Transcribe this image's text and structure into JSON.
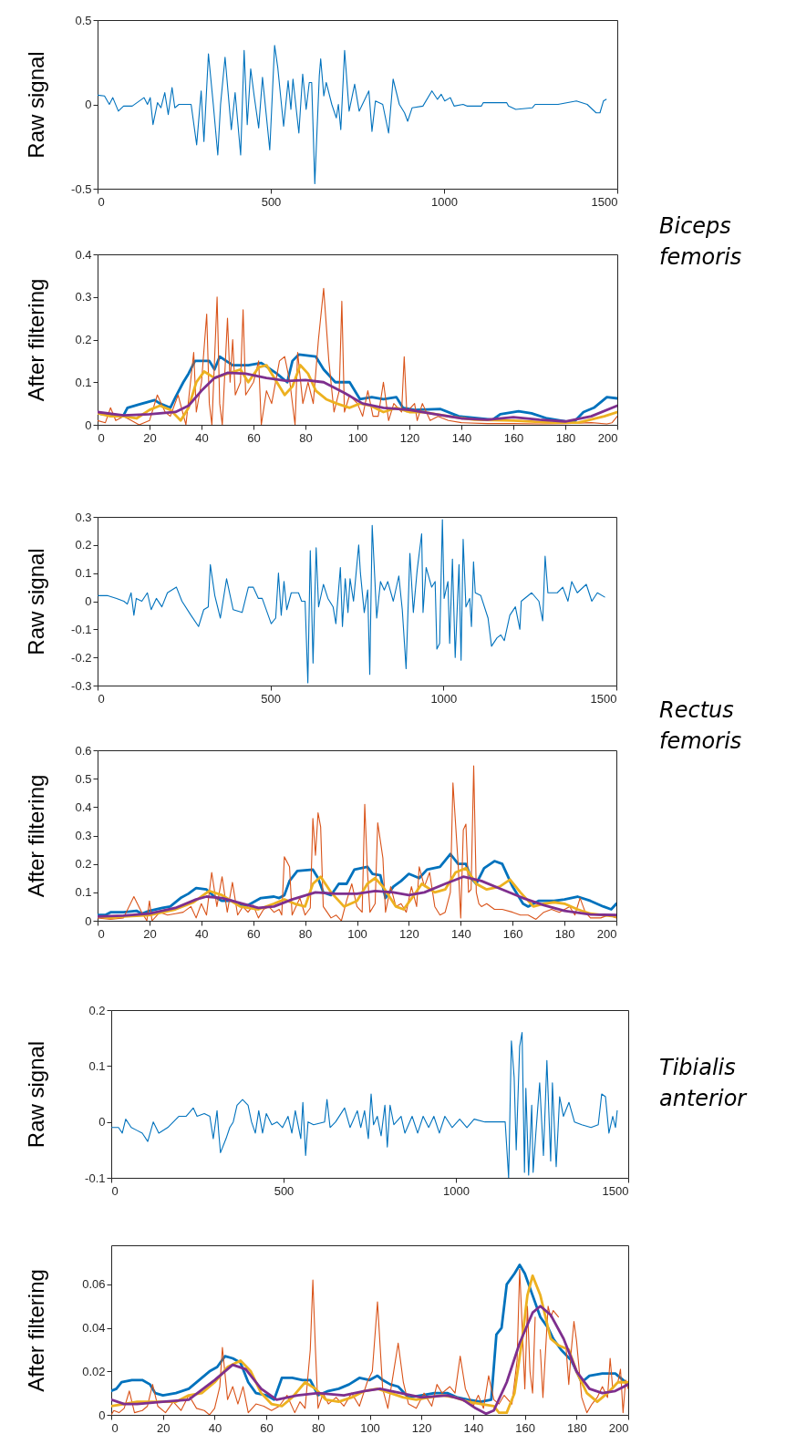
{
  "chart_data": [
    {
      "type": "line",
      "ylabel": "Raw signal",
      "xlim": [
        0,
        1500
      ],
      "xticks": [
        0,
        500,
        1000,
        1500
      ],
      "ylim": [
        -0.5,
        0.5
      ],
      "yticks": [
        -0.5,
        0,
        0.5
      ],
      "annotations": [
        "Biceps femoris"
      ],
      "series": [
        {
          "color": "#0072bd",
          "x": [
            0,
            20,
            34,
            44,
            60,
            75,
            100,
            134,
            144,
            152,
            160,
            173,
            183,
            194,
            204,
            215,
            223,
            235,
            270,
            286,
            299,
            307,
            320,
            334,
            347,
            355,
            368,
            386,
            397,
            413,
            423,
            432,
            442,
            452,
            465,
            476,
            497,
            511,
            520,
            537,
            550,
            558,
            564,
            581,
            592,
            602,
            611,
            618,
            627,
            640,
            644,
            653,
            660,
            676,
            689,
            695,
            702,
            713,
            726,
            742,
            755,
            783,
            792,
            802,
            823,
            840,
            853,
            871,
            886,
            895,
            908,
            939,
            965,
            981,
            992,
            1002,
            1018,
            1029,
            1055,
            1066,
            1108,
            1113,
            1181,
            1186,
            1207,
            1255,
            1263,
            1329,
            1382,
            1413,
            1439,
            1450,
            1460,
            1468
          ],
          "values": [
            0.055,
            0.05,
            0,
            0.04,
            -0.04,
            -0.01,
            -0.01,
            0.04,
            0,
            0.04,
            -0.12,
            0.01,
            -0.02,
            0.07,
            -0.06,
            0.1,
            -0.02,
            0,
            0,
            -0.24,
            0.08,
            -0.22,
            0.3,
            0,
            -0.3,
            0,
            0.28,
            -0.15,
            0.07,
            -0.3,
            0.32,
            -0.12,
            0.21,
            0.05,
            -0.14,
            0.16,
            -0.27,
            0.35,
            0.22,
            -0.13,
            0.14,
            -0.03,
            0.15,
            -0.17,
            0.18,
            -0.03,
            0.13,
            0.13,
            -0.47,
            0.17,
            0.27,
            0.05,
            0.13,
            0,
            -0.08,
            0,
            -0.15,
            0.32,
            -0.04,
            0.12,
            -0.04,
            0.08,
            -0.16,
            0.02,
            0,
            -0.17,
            0.15,
            0,
            -0.05,
            -0.1,
            -0.02,
            -0.01,
            0.08,
            0.03,
            0.06,
            0.02,
            0.04,
            -0.01,
            0,
            -0.01,
            -0.01,
            0.01,
            0.01,
            -0.01,
            -0.03,
            -0.02,
            0,
            0,
            0.02,
            0,
            -0.05,
            -0.05,
            0.02,
            0.03
          ]
        }
      ]
    },
    {
      "type": "line",
      "ylabel": "After filtering",
      "xlim": [
        0,
        200
      ],
      "xticks": [
        0,
        20,
        40,
        60,
        80,
        100,
        120,
        140,
        160,
        180,
        200
      ],
      "ylim": [
        0,
        0.4
      ],
      "yticks": [
        0,
        0.1,
        0.2,
        0.3,
        0.4
      ],
      "series": [
        {
          "color": "#0072bd",
          "x": [
            0,
            5,
            10,
            11.5,
            16,
            22,
            24,
            28,
            30,
            33,
            35,
            37.5,
            43,
            45,
            47,
            52,
            58,
            63,
            69,
            73,
            75,
            77.5,
            84,
            87,
            91.5,
            97,
            101,
            105.5,
            110,
            115,
            117.5,
            122,
            132,
            139,
            152,
            155,
            162,
            167,
            173,
            183,
            187,
            191,
            196,
            200
          ],
          "values": [
            0.027,
            0.022,
            0.022,
            0.04,
            0.048,
            0.058,
            0.05,
            0.04,
            0.065,
            0.1,
            0.12,
            0.15,
            0.15,
            0.13,
            0.16,
            0.14,
            0.14,
            0.145,
            0.12,
            0.1,
            0.15,
            0.165,
            0.16,
            0.13,
            0.1,
            0.1,
            0.06,
            0.065,
            0.06,
            0.065,
            0.04,
            0.035,
            0.037,
            0.02,
            0.012,
            0.025,
            0.032,
            0.027,
            0.015,
            0.005,
            0.03,
            0.04,
            0.065,
            0.062
          ]
        },
        {
          "color": "#d95319",
          "x": [
            0,
            3,
            5,
            7,
            10,
            13,
            16,
            20,
            23,
            26,
            28,
            31,
            34,
            37,
            38,
            40,
            42,
            43,
            44,
            46,
            47,
            48,
            50,
            51,
            52,
            53,
            55,
            56,
            57,
            60,
            62,
            63,
            65,
            67,
            70,
            72,
            74,
            76,
            77,
            79,
            81,
            83,
            85,
            87,
            89,
            91,
            93,
            94,
            95,
            97,
            100,
            102,
            104,
            106,
            108,
            110,
            112,
            114,
            117,
            118,
            119,
            122,
            123,
            125,
            128,
            131,
            135,
            140,
            150,
            160,
            170,
            180,
            190,
            196,
            198,
            200
          ],
          "values": [
            0.01,
            0.005,
            0.04,
            0.01,
            0.02,
            0.01,
            0,
            0.01,
            0.07,
            0.03,
            0.02,
            0.07,
            0,
            0.17,
            0.03,
            0.1,
            0.26,
            0.05,
            0,
            0.3,
            0.05,
            0,
            0.25,
            0.1,
            0.2,
            0.07,
            0.1,
            0.27,
            0.07,
            0.1,
            0.15,
            0,
            0.08,
            0.05,
            0.15,
            0.16,
            0.1,
            0,
            0.17,
            0.05,
            0.1,
            0.05,
            0.2,
            0.32,
            0.15,
            0.03,
            0.08,
            0.29,
            0.03,
            0.07,
            0.05,
            0.02,
            0.08,
            0.02,
            0.02,
            0.1,
            0.01,
            0.05,
            0.03,
            0.16,
            0.03,
            0.05,
            0.01,
            0.05,
            0.01,
            0.02,
            0.01,
            0.005,
            0.003,
            0.003,
            0.002,
            0.003,
            0.005,
            0.002,
            0.005,
            0.02
          ]
        },
        {
          "color": "#edb120",
          "x": [
            0,
            5,
            10,
            15,
            20,
            24,
            28,
            32,
            35,
            38,
            41,
            45,
            50,
            55,
            58,
            62,
            65,
            69,
            72,
            75,
            78,
            81,
            84,
            88,
            92,
            97,
            101,
            105,
            110,
            115,
            120,
            125,
            135,
            145,
            160,
            175,
            185,
            195,
            200
          ],
          "values": [
            0.027,
            0.02,
            0.02,
            0.015,
            0.035,
            0.045,
            0.035,
            0.01,
            0.04,
            0.1,
            0.125,
            0.11,
            0.12,
            0.13,
            0.1,
            0.135,
            0.14,
            0.1,
            0.07,
            0.09,
            0.14,
            0.12,
            0.08,
            0.06,
            0.05,
            0.04,
            0.05,
            0.045,
            0.03,
            0.04,
            0.03,
            0.03,
            0.02,
            0.012,
            0.01,
            0.005,
            0.005,
            0.02,
            0.03
          ]
        },
        {
          "color": "#7e2f8e",
          "x": [
            0,
            10,
            20,
            30,
            35,
            40,
            45,
            50,
            57,
            65,
            73,
            80,
            87,
            95,
            102,
            110,
            120,
            130,
            140,
            150,
            160,
            170,
            180,
            190,
            200
          ],
          "values": [
            0.03,
            0.022,
            0.025,
            0.03,
            0.045,
            0.08,
            0.11,
            0.122,
            0.12,
            0.11,
            0.103,
            0.105,
            0.1,
            0.075,
            0.05,
            0.04,
            0.035,
            0.025,
            0.015,
            0.012,
            0.018,
            0.012,
            0.008,
            0.02,
            0.045
          ]
        }
      ]
    },
    {
      "type": "line",
      "ylabel": "Raw signal",
      "xlim": [
        0,
        1500
      ],
      "xticks": [
        0,
        500,
        1000,
        1500
      ],
      "ylim": [
        -0.3,
        0.3
      ],
      "yticks": [
        -0.3,
        -0.2,
        -0.1,
        0,
        0.1,
        0.2,
        0.3
      ],
      "annotations": [
        "Rectus femoris"
      ],
      "series": [
        {
          "color": "#0072bd",
          "x": [
            2,
            28,
            55,
            76,
            86,
            97,
            105,
            112,
            128,
            144,
            155,
            170,
            186,
            202,
            228,
            244,
            270,
            292,
            307,
            320,
            326,
            339,
            355,
            373,
            392,
            418,
            436,
            450,
            465,
            476,
            502,
            515,
            523,
            531,
            539,
            547,
            560,
            581,
            590,
            600,
            608,
            615,
            623,
            632,
            639,
            653,
            666,
            681,
            689,
            702,
            708,
            716,
            724,
            730,
            740,
            755,
            760,
            771,
            781,
            787,
            794,
            802,
            807,
            818,
            829,
            839,
            855,
            871,
            881,
            892,
            903,
            913,
            924,
            937,
            941,
            950,
            966,
            976,
            981,
            989,
            997,
            1002,
            1013,
            1018,
            1026,
            1034,
            1045,
            1051,
            1057,
            1065,
            1076,
            1081,
            1087,
            1092,
            1108,
            1129,
            1139,
            1155,
            1166,
            1176,
            1192,
            1208,
            1221,
            1225,
            1255,
            1276,
            1287,
            1294,
            1302,
            1329,
            1345,
            1360,
            1371,
            1387,
            1413,
            1429,
            1445,
            1466
          ],
          "values": [
            0.02,
            0.02,
            0.01,
            0,
            -0.01,
            0.03,
            -0.05,
            0.01,
            0,
            0.03,
            -0.03,
            0.01,
            -0.02,
            0.03,
            0.05,
            0,
            -0.05,
            -0.09,
            -0.03,
            -0.02,
            0.13,
            0.02,
            -0.06,
            0.08,
            -0.03,
            -0.04,
            0.05,
            0.05,
            0.01,
            0.01,
            -0.08,
            -0.06,
            0.1,
            -0.05,
            0.07,
            -0.03,
            0.03,
            0.03,
            0,
            0,
            -0.29,
            0.18,
            -0.22,
            0.19,
            -0.02,
            0.06,
            0.01,
            -0.02,
            -0.08,
            0.12,
            -0.09,
            0.08,
            -0.04,
            0.08,
            0,
            0.2,
            0.1,
            -0.04,
            0.04,
            -0.26,
            0.27,
            0.07,
            -0.06,
            0.07,
            0.04,
            0.07,
            0,
            0.09,
            -0.03,
            -0.24,
            0.17,
            -0.04,
            0.11,
            0.24,
            -0.04,
            0.12,
            0.05,
            0.07,
            -0.17,
            -0.15,
            0.29,
            0.01,
            0.07,
            -0.15,
            0.15,
            -0.2,
            0.13,
            -0.21,
            0.22,
            -0.02,
            0.01,
            -0.09,
            0.14,
            0.03,
            0.02,
            -0.06,
            -0.16,
            -0.13,
            -0.12,
            -0.14,
            -0.05,
            -0.02,
            -0.1,
            0,
            0.03,
            0,
            -0.07,
            0.16,
            0.03,
            0.03,
            0.05,
            0,
            0.07,
            0.03,
            0.06,
            0,
            0.03,
            0.015
          ]
        }
      ]
    },
    {
      "type": "line",
      "ylabel": "After filtering",
      "xlim": [
        0,
        200
      ],
      "xticks": [
        0,
        20,
        40,
        60,
        80,
        100,
        120,
        140,
        160,
        180,
        200
      ],
      "ylim": [
        0,
        0.6
      ],
      "yticks": [
        0,
        0.1,
        0.2,
        0.3,
        0.4,
        0.5,
        0.6
      ],
      "series": [
        {
          "color": "#0072bd",
          "x": [
            0,
            3,
            5,
            10,
            15,
            17,
            20,
            25,
            28,
            32,
            35,
            38,
            42,
            45,
            48,
            52,
            57,
            60,
            63,
            68,
            70,
            72,
            74,
            77,
            83,
            85,
            87,
            90,
            93,
            96,
            99,
            104,
            106,
            109,
            111,
            114,
            117,
            120,
            124,
            127,
            132,
            136,
            139,
            142,
            144,
            146,
            149,
            153,
            156,
            160,
            164,
            166,
            170,
            176,
            180,
            185,
            190,
            195,
            198,
            200
          ],
          "values": [
            0.02,
            0.02,
            0.03,
            0.03,
            0.035,
            0.025,
            0.035,
            0.045,
            0.05,
            0.08,
            0.095,
            0.115,
            0.11,
            0.085,
            0.07,
            0.07,
            0.05,
            0.065,
            0.08,
            0.085,
            0.08,
            0.09,
            0.14,
            0.175,
            0.18,
            0.15,
            0.1,
            0.09,
            0.13,
            0.13,
            0.18,
            0.19,
            0.165,
            0.16,
            0.08,
            0.12,
            0.14,
            0.165,
            0.15,
            0.18,
            0.19,
            0.235,
            0.2,
            0.2,
            0.15,
            0.13,
            0.185,
            0.21,
            0.2,
            0.12,
            0.06,
            0.05,
            0.07,
            0.07,
            0.075,
            0.085,
            0.07,
            0.05,
            0.04,
            0.06
          ]
        },
        {
          "color": "#d95319",
          "x": [
            0,
            5,
            10,
            14,
            17,
            19,
            20,
            21,
            24,
            27,
            30,
            33,
            36,
            38,
            40,
            42,
            44,
            46,
            48,
            50,
            52,
            54,
            56,
            58,
            60,
            62,
            64,
            66,
            68,
            70,
            71,
            72,
            74,
            75,
            78,
            80,
            82,
            83,
            84,
            85,
            86,
            87,
            90,
            92,
            94,
            96,
            98,
            100,
            102,
            103,
            104,
            105,
            107,
            108,
            110,
            111,
            113,
            115,
            117,
            119,
            121,
            123,
            124,
            126,
            128,
            130,
            132,
            134,
            136,
            137,
            139,
            140,
            141,
            142,
            143,
            144,
            145,
            146,
            147,
            148,
            150,
            153,
            156,
            160,
            163,
            166,
            169,
            172,
            175,
            178,
            182,
            184,
            186,
            188,
            190,
            194,
            197,
            200
          ],
          "values": [
            0.01,
            0.005,
            0.01,
            0.085,
            0.03,
            0,
            0.07,
            0,
            0.03,
            0.02,
            0.025,
            0.03,
            0.05,
            0.01,
            0.06,
            0.02,
            0.17,
            0.05,
            0.155,
            0.03,
            0.135,
            0.02,
            0.05,
            0.03,
            0.055,
            0.01,
            0.04,
            0.05,
            0.03,
            0.04,
            0.02,
            0.225,
            0.19,
            0.02,
            0.08,
            0.02,
            0.045,
            0.36,
            0.23,
            0.38,
            0.33,
            0.05,
            0.01,
            0.02,
            0,
            0.07,
            0.13,
            0.05,
            0.03,
            0.41,
            0.18,
            0.03,
            0.06,
            0.345,
            0.22,
            0.03,
            0.12,
            0.05,
            0.06,
            0.03,
            0.12,
            0.05,
            0.19,
            0.12,
            0.17,
            0.05,
            0.02,
            0.03,
            0.1,
            0.485,
            0.2,
            0.01,
            0.32,
            0.34,
            0.1,
            0.11,
            0.545,
            0.1,
            0.06,
            0.05,
            0.06,
            0.04,
            0.04,
            0.03,
            0.02,
            0.02,
            0.005,
            0.03,
            0.04,
            0.03,
            0.05,
            0.02,
            0.08,
            0.03,
            0.01,
            0.01,
            0.02,
            0.01
          ]
        },
        {
          "color": "#edb120",
          "x": [
            0,
            5,
            10,
            20,
            30,
            37,
            43,
            48,
            55,
            62,
            68,
            72,
            76,
            80,
            83,
            86,
            90,
            95,
            100,
            104,
            107,
            110,
            115,
            118,
            122,
            125,
            130,
            134,
            138,
            142,
            146,
            150,
            155,
            159,
            163,
            168,
            172,
            176,
            180,
            185,
            190,
            195,
            200
          ],
          "values": [
            0.015,
            0.01,
            0.015,
            0.02,
            0.04,
            0.065,
            0.105,
            0.09,
            0.05,
            0.04,
            0.06,
            0.075,
            0.06,
            0.05,
            0.13,
            0.155,
            0.1,
            0.05,
            0.07,
            0.13,
            0.15,
            0.12,
            0.05,
            0.04,
            0.09,
            0.13,
            0.1,
            0.11,
            0.17,
            0.185,
            0.13,
            0.11,
            0.12,
            0.145,
            0.1,
            0.05,
            0.06,
            0.065,
            0.06,
            0.04,
            0.025,
            0.02,
            0.015
          ]
        },
        {
          "color": "#7e2f8e",
          "x": [
            0,
            10,
            20,
            30,
            38,
            42,
            48,
            56,
            62,
            68,
            75,
            84,
            92,
            100,
            107,
            114,
            120,
            126,
            134,
            141,
            148,
            156,
            164,
            172,
            180,
            190,
            200
          ],
          "values": [
            0.015,
            0.018,
            0.025,
            0.045,
            0.075,
            0.085,
            0.08,
            0.06,
            0.045,
            0.05,
            0.075,
            0.1,
            0.095,
            0.095,
            0.105,
            0.1,
            0.09,
            0.1,
            0.13,
            0.155,
            0.14,
            0.11,
            0.08,
            0.055,
            0.035,
            0.022,
            0.02
          ]
        }
      ]
    },
    {
      "type": "line",
      "ylabel": "Raw signal",
      "xlim": [
        0,
        1500
      ],
      "xticks": [
        0,
        500,
        1000,
        1500
      ],
      "ylim": [
        -0.1,
        0.2
      ],
      "yticks": [
        -0.1,
        0,
        0.1,
        0.2
      ],
      "annotations": [
        "Tibialis anterior"
      ],
      "series": [
        {
          "color": "#0072bd",
          "x": [
            0,
            21,
            32,
            42,
            58,
            74,
            90,
            106,
            122,
            138,
            164,
            196,
            217,
            238,
            249,
            270,
            286,
            296,
            307,
            312,
            317,
            333,
            344,
            354,
            365,
            381,
            397,
            407,
            418,
            428,
            439,
            450,
            466,
            481,
            497,
            513,
            524,
            534,
            550,
            556,
            564,
            571,
            587,
            619,
            626,
            635,
            651,
            677,
            693,
            714,
            724,
            735,
            746,
            754,
            761,
            772,
            783,
            794,
            801,
            809,
            820,
            841,
            852,
            873,
            889,
            905,
            921,
            936,
            952,
            968,
            989,
            1011,
            1032,
            1053,
            1084,
            1116,
            1143,
            1153,
            1161,
            1169,
            1175,
            1185,
            1192,
            1199,
            1203,
            1211,
            1220,
            1224,
            1232,
            1243,
            1254,
            1264,
            1275,
            1280,
            1291,
            1301,
            1312,
            1328,
            1344,
            1365,
            1392,
            1413,
            1423,
            1434,
            1444,
            1455,
            1463,
            1468
          ],
          "values": [
            -0.01,
            -0.01,
            -0.02,
            0.005,
            -0.01,
            -0.015,
            -0.02,
            -0.035,
            0,
            -0.02,
            -0.01,
            0.01,
            0.01,
            0.025,
            0.01,
            0.015,
            0.01,
            -0.03,
            0.02,
            -0.02,
            -0.055,
            -0.03,
            -0.01,
            0,
            0.03,
            0.04,
            0.03,
            0,
            -0.02,
            0.02,
            -0.02,
            0.015,
            -0.005,
            0,
            -0.01,
            0.01,
            -0.02,
            0.02,
            -0.03,
            0.035,
            -0.06,
            0,
            -0.005,
            0,
            0.04,
            -0.01,
            0,
            0.025,
            -0.01,
            0.02,
            -0.01,
            0.02,
            -0.03,
            0.05,
            -0.005,
            0.01,
            -0.025,
            0.03,
            -0.045,
            0.03,
            -0.005,
            0.01,
            -0.02,
            0.01,
            -0.02,
            0.01,
            -0.01,
            0.01,
            -0.02,
            0.01,
            -0.01,
            0.005,
            -0.01,
            0.005,
            0,
            0,
            0,
            -0.1,
            0.145,
            0.08,
            -0.05,
            0.135,
            0.16,
            -0.09,
            0.06,
            -0.095,
            0.03,
            -0.09,
            -0.02,
            0.07,
            -0.06,
            0.11,
            -0.07,
            0.07,
            -0.08,
            0.045,
            0.01,
            0.035,
            0,
            -0.005,
            -0.01,
            -0.005,
            0.05,
            0.045,
            -0.02,
            0.01,
            -0.01,
            0.02
          ]
        }
      ]
    },
    {
      "type": "line",
      "ylabel": "After filtering",
      "xlim": [
        0,
        200
      ],
      "xticks": [
        0,
        20,
        40,
        60,
        80,
        100,
        120,
        140,
        160,
        180,
        200
      ],
      "ylim": [
        0,
        0.078
      ],
      "yticks": [
        0,
        0.02,
        0.04,
        0.06
      ],
      "series": [
        {
          "color": "#0072bd",
          "x": [
            0,
            2,
            4,
            8,
            12,
            15,
            17,
            20,
            25,
            30,
            34,
            38,
            41,
            44,
            47,
            50,
            53,
            56,
            60,
            63,
            66,
            70,
            74,
            77,
            80,
            84,
            88,
            92,
            96,
            100,
            103,
            105,
            108,
            111,
            115,
            120,
            125,
            130,
            134,
            138,
            143,
            147,
            149,
            151,
            153,
            156,
            158,
            160,
            163,
            166,
            169,
            171,
            174,
            178,
            182,
            185,
            190,
            195,
            200
          ],
          "values": [
            0.011,
            0.012,
            0.015,
            0.016,
            0.016,
            0.014,
            0.01,
            0.009,
            0.01,
            0.012,
            0.016,
            0.02,
            0.022,
            0.027,
            0.026,
            0.024,
            0.015,
            0.01,
            0.009,
            0.007,
            0.017,
            0.017,
            0.016,
            0.016,
            0.009,
            0.011,
            0.012,
            0.014,
            0.017,
            0.016,
            0.018,
            0.016,
            0.014,
            0.013,
            0.008,
            0.009,
            0.01,
            0.01,
            0.008,
            0.007,
            0.006,
            0.007,
            0.037,
            0.04,
            0.06,
            0.065,
            0.069,
            0.065,
            0.055,
            0.045,
            0.04,
            0.035,
            0.03,
            0.025,
            0.015,
            0.018,
            0.019,
            0.019,
            0.014
          ]
        },
        {
          "color": "#d95319",
          "x": [
            0,
            1,
            3,
            5,
            7,
            9,
            12,
            14,
            16,
            18,
            21,
            24,
            27,
            30,
            33,
            36,
            38,
            40,
            42,
            43,
            45,
            47,
            49,
            51,
            53,
            56,
            59,
            62,
            65,
            68,
            71,
            73,
            75,
            77,
            78,
            79,
            80,
            82,
            84,
            87,
            90,
            93,
            96,
            99,
            101,
            103,
            105,
            107,
            109,
            111,
            113,
            115,
            118,
            121,
            124,
            126,
            128,
            131,
            133,
            135,
            137,
            140,
            142,
            144,
            146,
            148,
            150,
            152,
            155,
            157,
            158,
            159,
            160,
            161,
            162,
            163,
            164,
            165,
            166,
            167,
            169,
            170,
            171,
            173,
            175,
            176,
            177,
            178,
            179,
            180,
            182,
            184,
            186,
            188,
            190,
            192,
            193,
            194,
            196,
            197,
            198,
            199,
            200
          ],
          "values": [
            0,
            0.002,
            0.001,
            0.003,
            0.011,
            0.001,
            0.002,
            0.004,
            0.014,
            0.004,
            0.001,
            0.006,
            0.002,
            0.009,
            0.003,
            0.002,
            0,
            0.003,
            0.013,
            0.031,
            0.007,
            0.013,
            0.005,
            0.013,
            0.001,
            0.005,
            0.004,
            0.002,
            0.004,
            0.009,
            0.001,
            0.006,
            0.003,
            0.03,
            0.062,
            0.03,
            0.003,
            0.01,
            0.005,
            0.008,
            0.004,
            0.01,
            0.004,
            0.015,
            0.02,
            0.052,
            0.012,
            0.003,
            0.018,
            0.033,
            0.015,
            0.005,
            0.003,
            0.01,
            0.004,
            0.014,
            0.01,
            0.013,
            0.01,
            0.027,
            0.012,
            0.004,
            0.009,
            0.003,
            0.018,
            0.007,
            0.005,
            0.009,
            0.005,
            0.025,
            0.067,
            0.04,
            0.012,
            0.05,
            0.02,
            0.01,
            0.045,
            null,
            0.03,
            0.008,
            0.05,
            0.045,
            0.048,
            0.045,
            null,
            0.03,
            0.014,
            0.03,
            0.043,
            0.034,
            0.008,
            0.001,
            0.005,
            0.008,
            0.013,
            0.008,
            0.026,
            0.012,
            0.015,
            0.021,
            0.001,
            0.016,
            0.012
          ]
        },
        {
          "color": "#edb120",
          "x": [
            0,
            5,
            10,
            15,
            20,
            25,
            30,
            35,
            40,
            45,
            50,
            54,
            58,
            62,
            66,
            70,
            75,
            79,
            83,
            88,
            93,
            98,
            103,
            108,
            113,
            118,
            123,
            128,
            133,
            138,
            143,
            148,
            150,
            153,
            156,
            159,
            161,
            163,
            166,
            170,
            173,
            177,
            180,
            184,
            188,
            192,
            196,
            200
          ],
          "values": [
            0.004,
            0.005,
            0.006,
            0.006,
            0.006,
            0.006,
            0.009,
            0.01,
            0.015,
            0.022,
            0.025,
            0.02,
            0.01,
            0.005,
            0.004,
            0.008,
            0.015,
            0.012,
            0.007,
            0.006,
            0.008,
            0.011,
            0.012,
            0.01,
            0.008,
            0.007,
            0.008,
            0.009,
            0.008,
            0.006,
            0.005,
            0.004,
            0.001,
            0.001,
            0.01,
            0.035,
            0.055,
            0.064,
            0.055,
            0.035,
            0.032,
            0.03,
            0.02,
            0.01,
            0.006,
            0.01,
            0.015,
            0.015
          ]
        },
        {
          "color": "#7e2f8e",
          "x": [
            0,
            5,
            10,
            20,
            30,
            40,
            47,
            52,
            58,
            64,
            72,
            80,
            90,
            98,
            104,
            112,
            120,
            130,
            136,
            141,
            145,
            148,
            153,
            158,
            163,
            166,
            170,
            175,
            180,
            185,
            190,
            195,
            200
          ],
          "values": [
            0.007,
            0.005,
            0.005,
            0.006,
            0.007,
            0.016,
            0.023,
            0.021,
            0.012,
            0.007,
            0.009,
            0.01,
            0.009,
            0.011,
            0.012,
            0.01,
            0.008,
            0.009,
            0.007,
            0.003,
            0.0005,
            0.002,
            0.015,
            0.033,
            0.047,
            0.05,
            0.046,
            0.035,
            0.02,
            0.012,
            0.01,
            0.011,
            0.014
          ]
        }
      ]
    }
  ]
}
